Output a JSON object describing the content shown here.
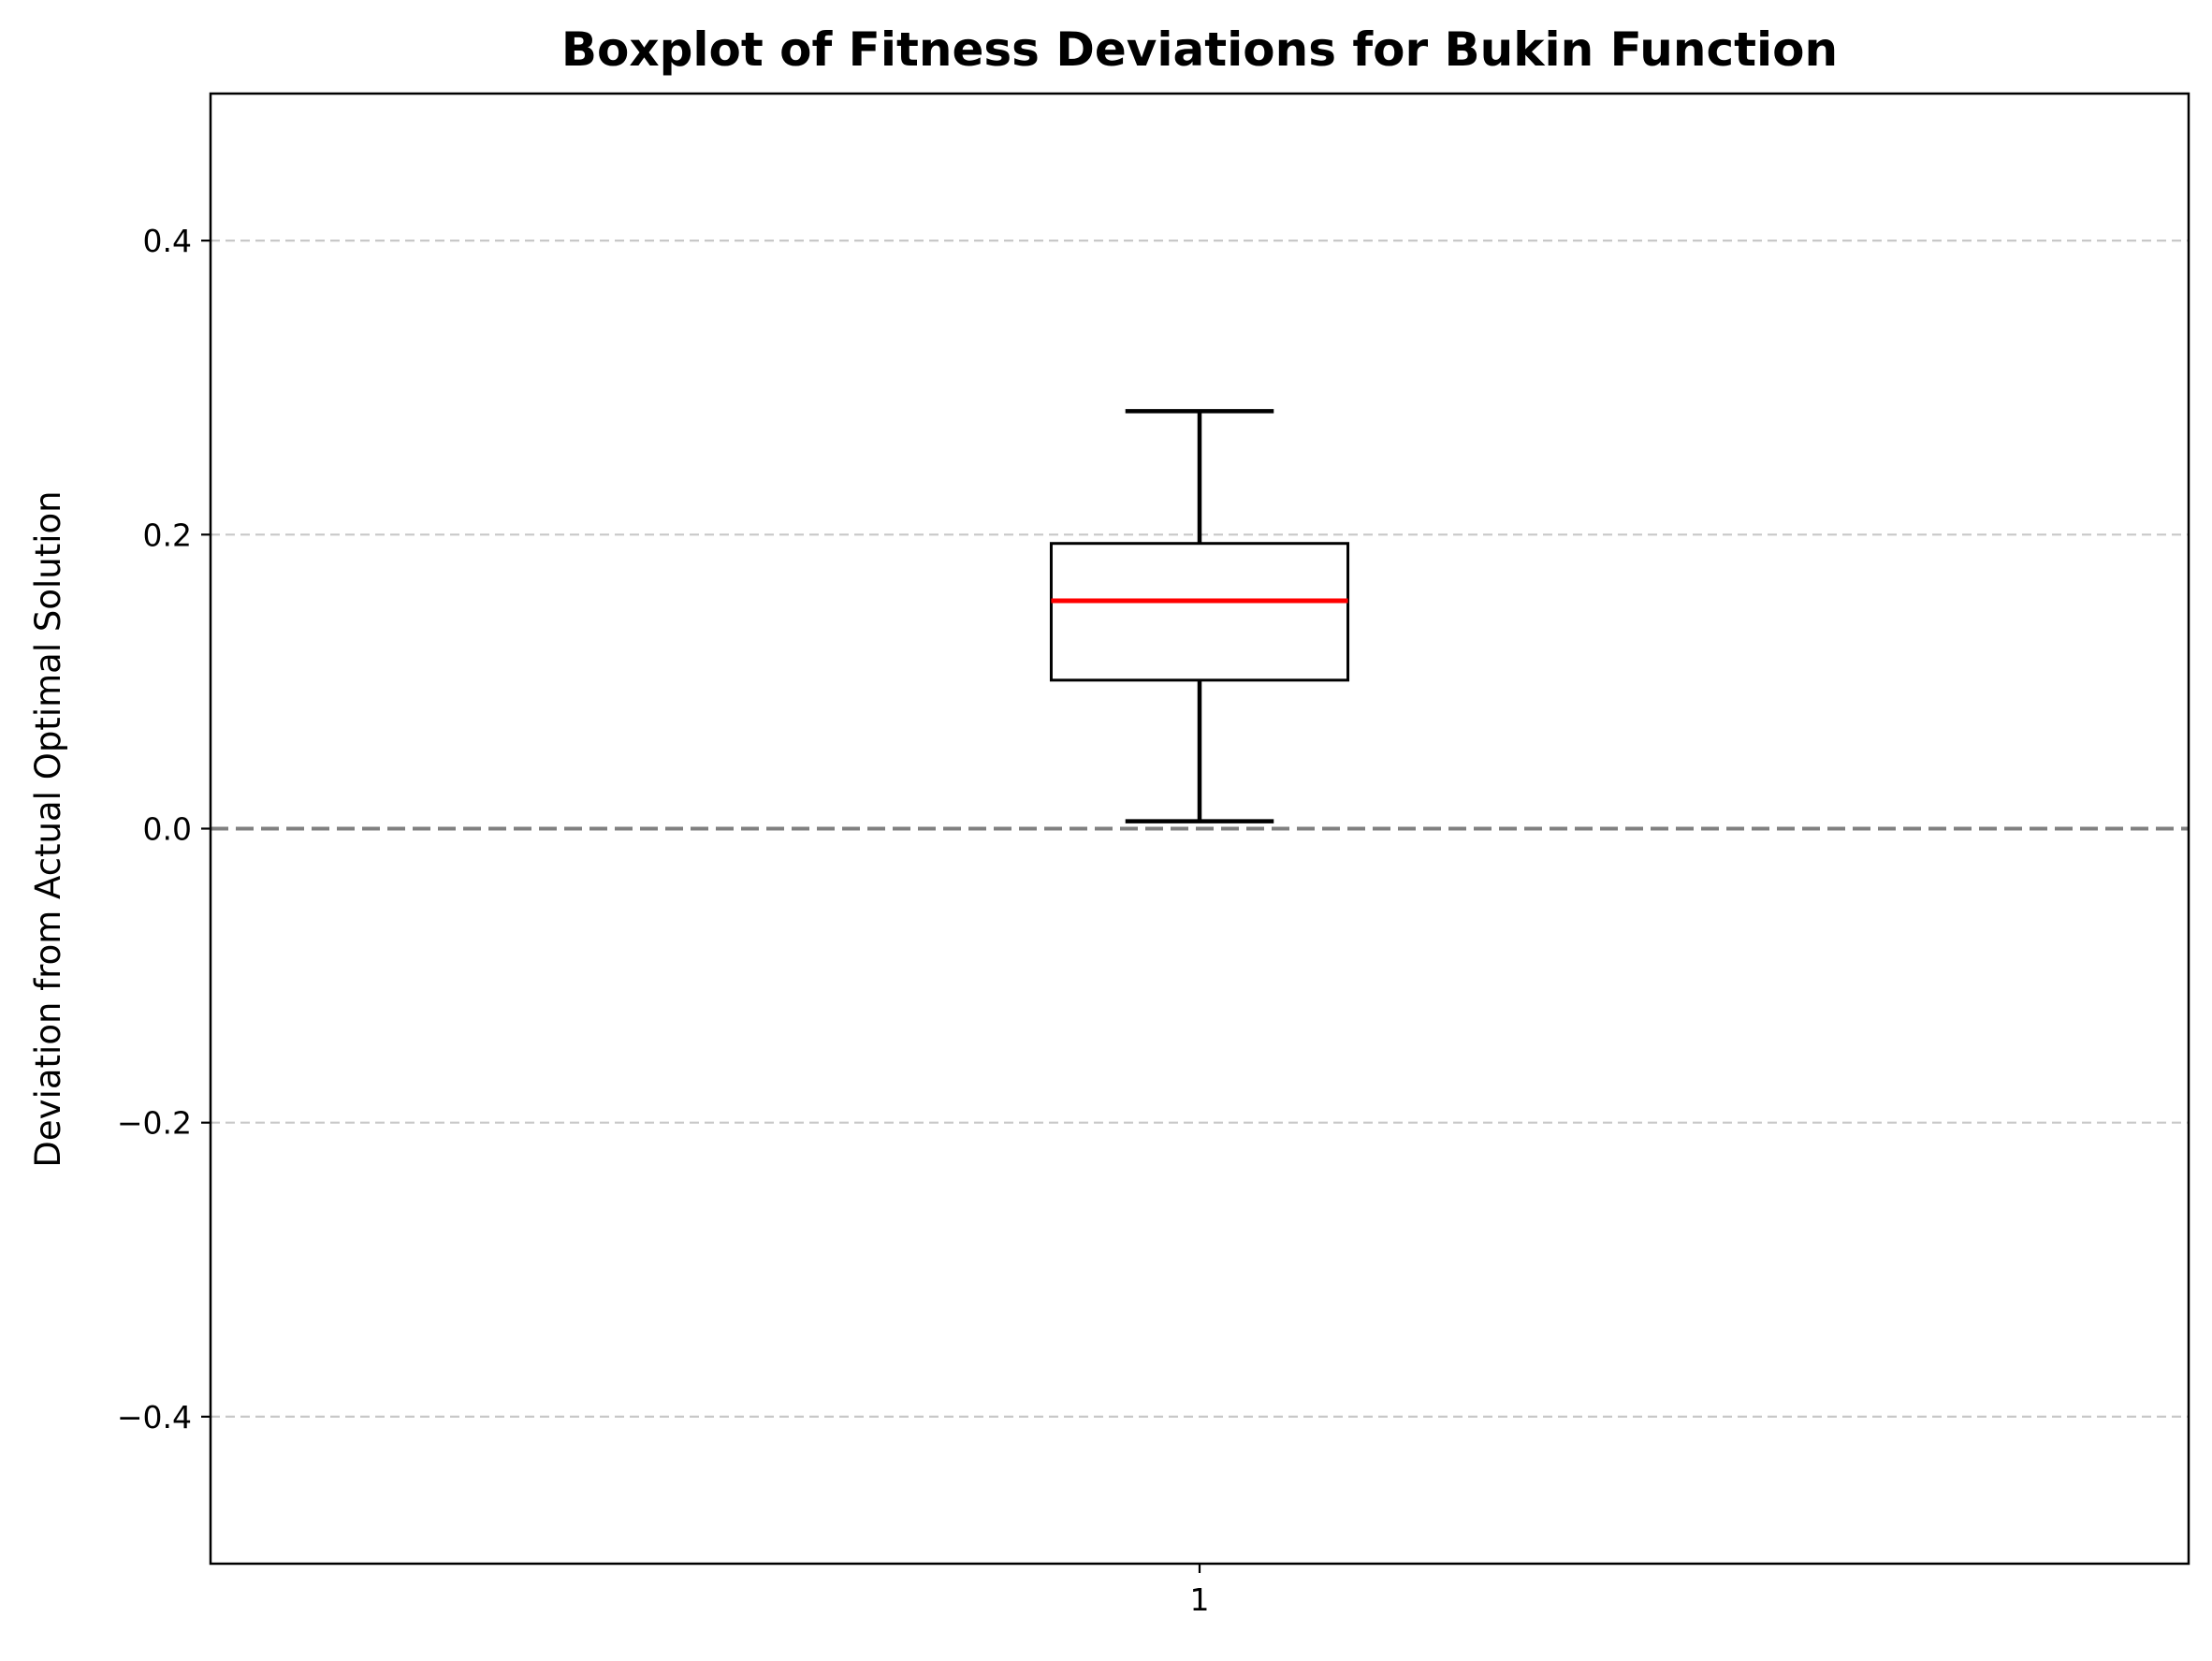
{
  "chart_data": {
    "type": "box",
    "title": "Boxplot of Fitness Deviations for Bukin Function",
    "xlabel": "",
    "ylabel": "Deviation from Actual Optimal Solution",
    "ylim": [
      -0.5,
      0.5
    ],
    "yticks": [
      -0.4,
      -0.2,
      0.0,
      0.2,
      0.4
    ],
    "ytick_labels": [
      "−0.4",
      "−0.2",
      "0.0",
      "0.2",
      "0.4"
    ],
    "xticks": [
      1
    ],
    "xtick_labels": [
      "1"
    ],
    "grid": {
      "axis": "y",
      "style": "dashed",
      "color": "#c8c8c8"
    },
    "reference_line": {
      "y": 0.0,
      "style": "dashed",
      "color": "#808080"
    },
    "boxes": [
      {
        "position": 1,
        "whisker_low": 0.005,
        "q1": 0.101,
        "median": 0.155,
        "q3": 0.194,
        "whisker_high": 0.284
      }
    ],
    "colors": {
      "box_edge": "#000000",
      "median": "#ff0000",
      "whisker": "#000000"
    }
  }
}
